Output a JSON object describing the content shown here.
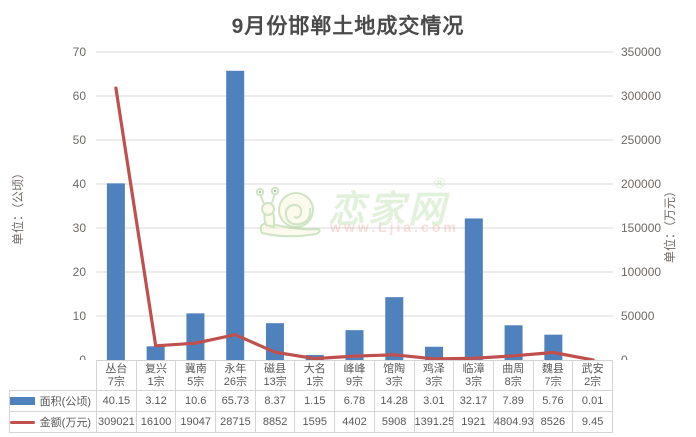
{
  "title": "9月份邯郸土地成交情况",
  "watermark": {
    "brand": "恋家网",
    "reg": "®",
    "url": "www.Ljia.com"
  },
  "chart_data": {
    "type": "bar",
    "subtype": "combo-bar-line-dual-axis",
    "title": "9月份邯郸土地成交情况",
    "categories": [
      "丛台",
      "复兴",
      "冀南",
      "永年",
      "磁县",
      "大名",
      "峰峰",
      "馆陶",
      "鸡泽",
      "临漳",
      "曲周",
      "魏县",
      "武安"
    ],
    "category_counts": [
      "7宗",
      "1宗",
      "5宗",
      "26宗",
      "13宗",
      "1宗",
      "9宗",
      "3宗",
      "3宗",
      "3宗",
      "8宗",
      "7宗",
      "2宗"
    ],
    "series": [
      {
        "name": "面积(公顷)",
        "type": "bar",
        "axis": "left",
        "color": "#4f81bd",
        "values": [
          40.15,
          3.12,
          10.6,
          65.73,
          8.37,
          1.15,
          6.78,
          14.28,
          3.01,
          32.17,
          7.89,
          5.76,
          0.01
        ]
      },
      {
        "name": "金额(万元)",
        "type": "line",
        "axis": "right",
        "color": "#c0504d",
        "values": [
          309021,
          16100,
          19047,
          28715,
          8852,
          1595,
          4402,
          5908,
          1391.25,
          1921,
          4804.93,
          8526,
          9.45
        ]
      }
    ],
    "left_axis": {
      "label": "单位：（公顷）",
      "min": 0,
      "max": 70,
      "step": 10
    },
    "right_axis": {
      "label": "单位：（万元）",
      "min": 0,
      "max": 350000,
      "step": 50000
    },
    "grid": true,
    "gridline_color": "#d9d9d9",
    "tick_label_color": "#6f6a66",
    "legend_position": "table-left"
  }
}
